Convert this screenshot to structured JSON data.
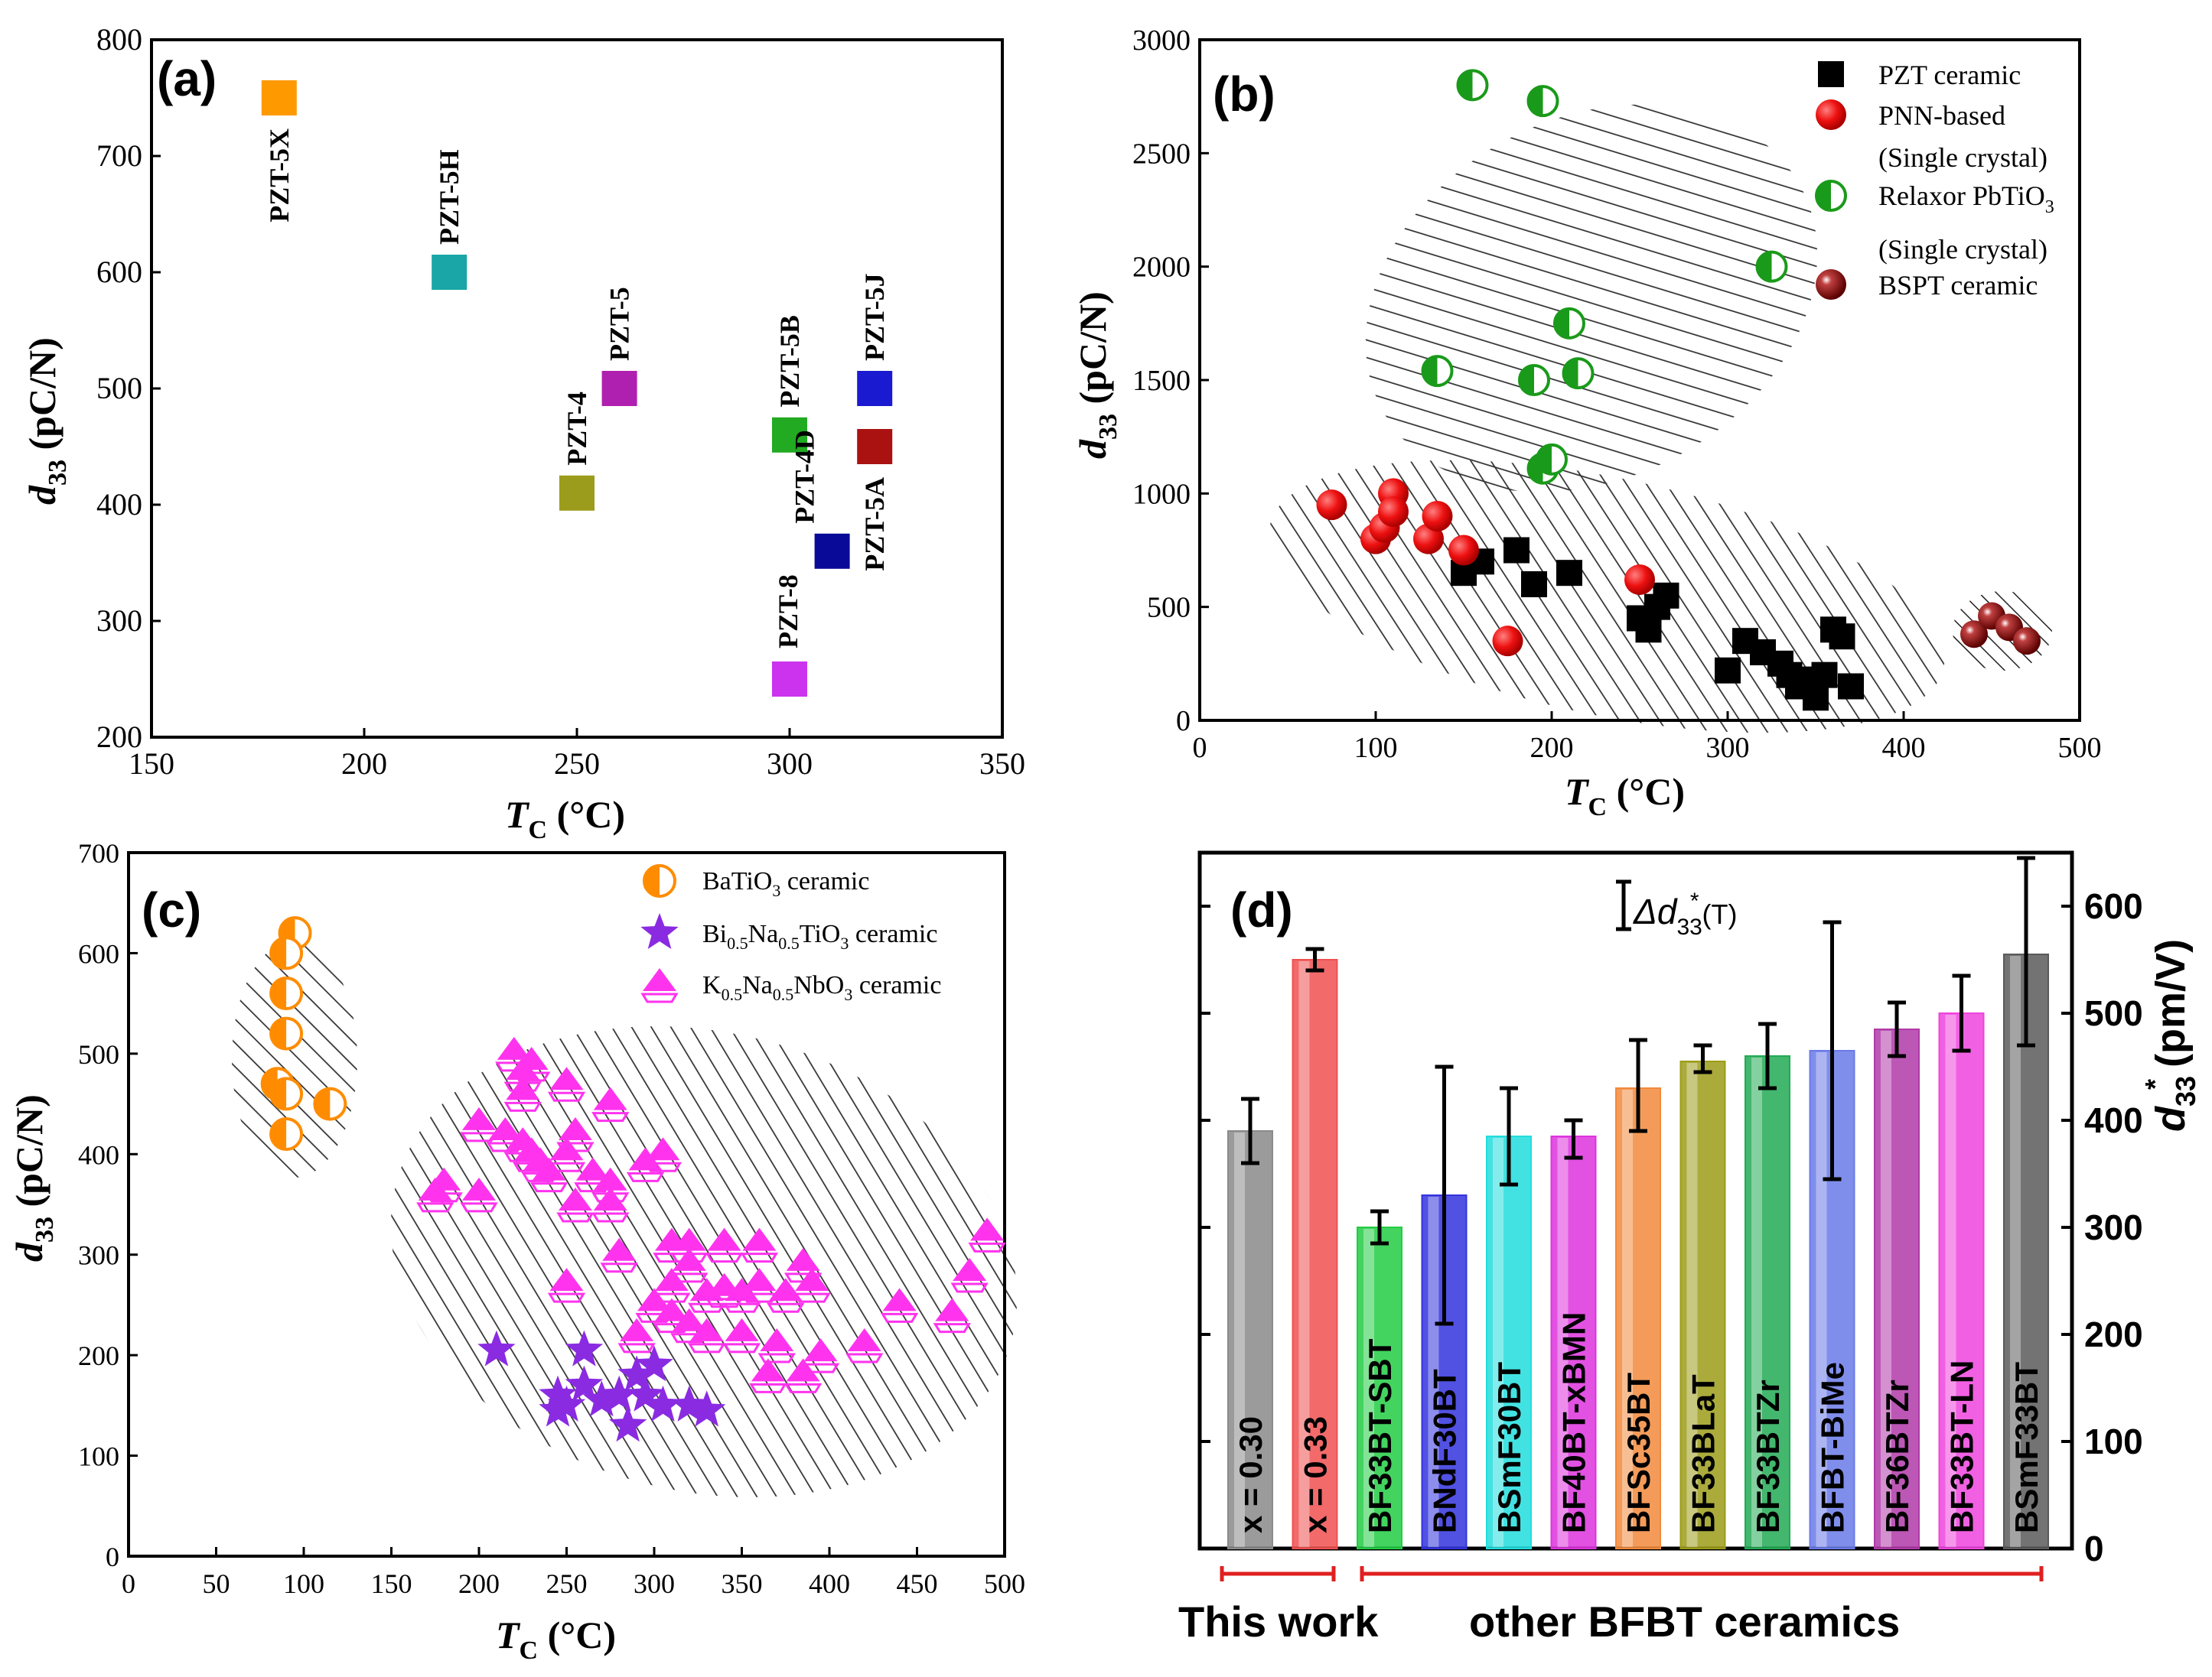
{
  "chart_data": [
    {
      "panel": "(a)",
      "type": "scatter",
      "xlabel_main": "T",
      "xlabel_sub": "C",
      "xlabel_unit": " (°C)",
      "ylabel_main": "d",
      "ylabel_sub": "33",
      "ylabel_unit": " (pC/N)",
      "xlim": [
        150,
        350
      ],
      "ylim": [
        200,
        800
      ],
      "xticks": [
        150,
        200,
        250,
        300,
        350
      ],
      "yticks": [
        200,
        300,
        400,
        500,
        600,
        700,
        800
      ],
      "points": [
        {
          "label": "PZT-5X",
          "x": 180,
          "y": 750,
          "color": "#ff9900"
        },
        {
          "label": "PZT-5H",
          "x": 220,
          "y": 600,
          "color": "#1aa6a6"
        },
        {
          "label": "PZT-4",
          "x": 250,
          "y": 410,
          "color": "#9c9c1c"
        },
        {
          "label": "PZT-5",
          "x": 260,
          "y": 500,
          "color": "#b020b0"
        },
        {
          "label": "PZT-5B",
          "x": 300,
          "y": 460,
          "color": "#22aa22"
        },
        {
          "label": "PZT-8",
          "x": 300,
          "y": 250,
          "color": "#cc33ee"
        },
        {
          "label": "PZT-4D",
          "x": 310,
          "y": 360,
          "color": "#0a0a99"
        },
        {
          "label": "PZT-5J",
          "x": 320,
          "y": 500,
          "color": "#1a1ad0"
        },
        {
          "label": "PZT-5A",
          "x": 320,
          "y": 450,
          "color": "#aa1111"
        }
      ]
    },
    {
      "panel": "(b)",
      "type": "scatter",
      "xlabel_main": "T",
      "xlabel_sub": "C",
      "xlabel_unit": " (°C)",
      "ylabel_main": "d",
      "ylabel_sub": "33",
      "ylabel_unit": " (pC/N)",
      "xlim": [
        0,
        500
      ],
      "ylim": [
        0,
        3000
      ],
      "xticks": [
        0,
        100,
        200,
        300,
        400,
        500
      ],
      "yticks": [
        0,
        500,
        1000,
        1500,
        2000,
        2500,
        3000
      ],
      "legend": [
        {
          "label": "PZT ceramic",
          "sub": ""
        },
        {
          "label": "PNN-based",
          "sub": "(Single crystal)"
        },
        {
          "label": "Relaxor PbTiO",
          "label_sub": "3",
          "sub": "(Single crystal)"
        },
        {
          "label": "BSPT ceramic",
          "sub": ""
        }
      ],
      "series": [
        {
          "name": "PZT ceramic",
          "points": [
            [
              150,
              650
            ],
            [
              160,
              700
            ],
            [
              180,
              750
            ],
            [
              190,
              600
            ],
            [
              210,
              650
            ],
            [
              250,
              450
            ],
            [
              255,
              400
            ],
            [
              260,
              500
            ],
            [
              265,
              550
            ],
            [
              300,
              220
            ],
            [
              310,
              350
            ],
            [
              320,
              300
            ],
            [
              330,
              250
            ],
            [
              335,
              200
            ],
            [
              340,
              150
            ],
            [
              345,
              180
            ],
            [
              350,
              100
            ],
            [
              355,
              200
            ],
            [
              360,
              400
            ],
            [
              365,
              370
            ],
            [
              370,
              150
            ]
          ]
        },
        {
          "name": "PNN-based (Single crystal)",
          "points": [
            [
              75,
              950
            ],
            [
              100,
              800
            ],
            [
              105,
              850
            ],
            [
              110,
              1000
            ],
            [
              110,
              920
            ],
            [
              130,
              800
            ],
            [
              135,
              900
            ],
            [
              150,
              750
            ],
            [
              175,
              350
            ],
            [
              250,
              620
            ]
          ]
        },
        {
          "name": "Relaxor PbTiO3 (Single crystal)",
          "points": [
            [
              155,
              2800
            ],
            [
              195,
              2730
            ],
            [
              325,
              2000
            ],
            [
              210,
              1750
            ],
            [
              215,
              1530
            ],
            [
              190,
              1500
            ],
            [
              135,
              1540
            ],
            [
              195,
              1110
            ],
            [
              200,
              1150
            ]
          ]
        },
        {
          "name": "BSPT ceramic",
          "points": [
            [
              440,
              380
            ],
            [
              450,
              460
            ],
            [
              460,
              410
            ],
            [
              470,
              350
            ]
          ]
        }
      ]
    },
    {
      "panel": "(c)",
      "type": "scatter",
      "xlabel_main": "T",
      "xlabel_sub": "C",
      "xlabel_unit": " (°C)",
      "ylabel_main": "d",
      "ylabel_sub": "33",
      "ylabel_unit": " (pC/N)",
      "xlim": [
        0,
        500
      ],
      "ylim": [
        0,
        700
      ],
      "xticks": [
        0,
        50,
        100,
        150,
        200,
        250,
        300,
        350,
        400,
        450,
        500
      ],
      "yticks": [
        0,
        100,
        200,
        300,
        400,
        500,
        600,
        700
      ],
      "legend": [
        {
          "label": "BaTiO",
          "s1": "3",
          "rest": " ceramic"
        },
        {
          "label": "Bi",
          "s1": "0.5",
          "mid": "Na",
          "s2": "0.5",
          "tail": "TiO",
          "s3": "3",
          "rest": " ceramic"
        },
        {
          "label": "K",
          "s1": "0.5",
          "mid": "Na",
          "s2": "0.5",
          "tail": "NbO",
          "s3": "3",
          "rest": " ceramic"
        }
      ],
      "series": [
        {
          "name": "BaTiO3 ceramic",
          "points": [
            [
              95,
              620
            ],
            [
              90,
              600
            ],
            [
              90,
              560
            ],
            [
              90,
              520
            ],
            [
              85,
              470
            ],
            [
              90,
              460
            ],
            [
              90,
              420
            ],
            [
              115,
              450
            ]
          ]
        },
        {
          "name": "Bi0.5Na0.5TiO3 ceramic",
          "points": [
            [
              210,
              205
            ],
            [
              260,
              205
            ],
            [
              245,
              160
            ],
            [
              250,
              150
            ],
            [
              260,
              170
            ],
            [
              280,
              160
            ],
            [
              285,
              130
            ],
            [
              290,
              180
            ],
            [
              295,
              160
            ],
            [
              300,
              190
            ],
            [
              305,
              150
            ],
            [
              320,
              150
            ],
            [
              330,
              145
            ],
            [
              270,
              155
            ],
            [
              245,
              145
            ]
          ]
        },
        {
          "name": "K0.5Na0.5NbO3 ceramic",
          "points": [
            [
              220,
              500
            ],
            [
              225,
              480
            ],
            [
              230,
              490
            ],
            [
              250,
              470
            ],
            [
              225,
              460
            ],
            [
              200,
              430
            ],
            [
              275,
              450
            ],
            [
              215,
              420
            ],
            [
              225,
              410
            ],
            [
              230,
              400
            ],
            [
              235,
              390
            ],
            [
              255,
              420
            ],
            [
              250,
              400
            ],
            [
              240,
              380
            ],
            [
              265,
              380
            ],
            [
              275,
              370
            ],
            [
              295,
              390
            ],
            [
              305,
              400
            ],
            [
              175,
              360
            ],
            [
              180,
              370
            ],
            [
              200,
              360
            ],
            [
              255,
              350
            ],
            [
              275,
              350
            ],
            [
              280,
              300
            ],
            [
              310,
              310
            ],
            [
              320,
              310
            ],
            [
              340,
              310
            ],
            [
              360,
              310
            ],
            [
              385,
              290
            ],
            [
              490,
              320
            ],
            [
              250,
              270
            ],
            [
              320,
              290
            ],
            [
              310,
              270
            ],
            [
              330,
              260
            ],
            [
              340,
              265
            ],
            [
              350,
              260
            ],
            [
              360,
              270
            ],
            [
              375,
              260
            ],
            [
              390,
              270
            ],
            [
              300,
              250
            ],
            [
              310,
              240
            ],
            [
              320,
              230
            ],
            [
              290,
              220
            ],
            [
              330,
              220
            ],
            [
              350,
              220
            ],
            [
              370,
              210
            ],
            [
              395,
              200
            ],
            [
              420,
              210
            ],
            [
              440,
              250
            ],
            [
              470,
              240
            ],
            [
              480,
              280
            ],
            [
              365,
              180
            ],
            [
              385,
              180
            ]
          ]
        }
      ]
    },
    {
      "panel": "(d)",
      "type": "bar",
      "ylabel_main": "d",
      "ylabel_sub": "33",
      "ylabel_sup": "*",
      "ylabel_unit": " (pm/V)",
      "ylim": [
        0,
        650
      ],
      "yticks": [
        0,
        100,
        200,
        300,
        400,
        500,
        600
      ],
      "legend_label_main": "Δd",
      "legend_sub": "33",
      "legend_sup": "*",
      "legend_tail": "(T)",
      "categories": [
        "x = 0.30",
        "x = 0.33",
        "BF33BT-SBT",
        "BNdF30BT",
        "BSmF30BT",
        "BF40BT-xBMN",
        "BFSc35BT",
        "BF33BLaT",
        "BF33BTZr",
        "BFBT-BiMe",
        "BF36BTZr",
        "BF33BT-LN",
        "BSmF33BT"
      ],
      "values": [
        390,
        550,
        300,
        330,
        385,
        385,
        430,
        455,
        460,
        465,
        485,
        500,
        555
      ],
      "err_low": [
        360,
        540,
        285,
        210,
        340,
        365,
        390,
        445,
        430,
        345,
        460,
        465,
        470
      ],
      "err_high": [
        420,
        560,
        315,
        450,
        430,
        400,
        475,
        470,
        490,
        585,
        510,
        535,
        645
      ],
      "colors": [
        "#8a8a8a",
        "#f05050",
        "#22cc44",
        "#3333dd",
        "#22dddd",
        "#dd33dd",
        "#f28a3c",
        "#9c9c1a",
        "#22aa55",
        "#6a7ae8",
        "#b03aa8",
        "#ee44dd",
        "#5a5a5a"
      ],
      "group_labels": [
        "This work",
        "other BFBT ceramics"
      ]
    }
  ]
}
